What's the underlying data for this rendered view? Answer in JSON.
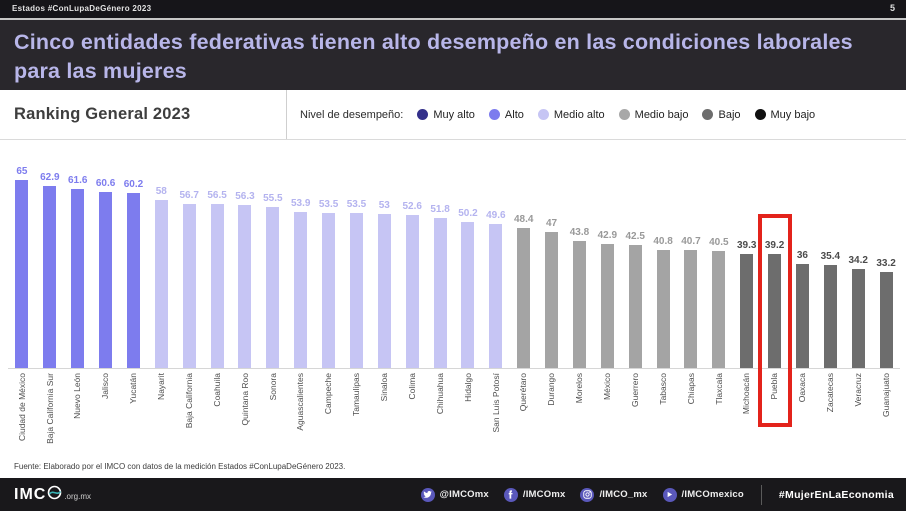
{
  "meta_bar": {
    "left_text": "Estados #ConLupaDeGénero 2023",
    "page_number": "5"
  },
  "title": "Cinco entidades federativas tienen alto desempeño en las condiciones laborales para las mujeres",
  "ranking_header": {
    "title": "Ranking General 2023",
    "legend_label": "Nivel de desempeño:",
    "legend": [
      {
        "label": "Muy alto"
      },
      {
        "label": "Alto"
      },
      {
        "label": "Medio alto"
      },
      {
        "label": "Medio bajo"
      },
      {
        "label": "Bajo"
      },
      {
        "label": "Muy bajo"
      }
    ]
  },
  "chart_data": {
    "type": "bar",
    "title": "Ranking General 2023",
    "xlabel": "",
    "ylabel": "",
    "ylim": [
      0,
      70
    ],
    "grid": false,
    "legend_position": "top",
    "categories": [
      "Ciudad de México",
      "Baja California Sur",
      "Nuevo León",
      "Jalisco",
      "Yucatán",
      "Nayarit",
      "Baja California",
      "Coahuila",
      "Quintana Roo",
      "Sonora",
      "Aguascalientes",
      "Campeche",
      "Tamaulipas",
      "Sinaloa",
      "Colima",
      "Chihuahua",
      "Hidalgo",
      "San Luis Potosí",
      "Querétaro",
      "Durango",
      "Morelos",
      "México",
      "Guerrero",
      "Tabasco",
      "Chiapas",
      "Tlaxcala",
      "Michoacán",
      "Puebla",
      "Oaxaca",
      "Zacatecas",
      "Veracruz",
      "Guanajuato"
    ],
    "values": [
      65,
      62.9,
      61.6,
      60.6,
      60.2,
      58,
      56.7,
      56.5,
      56.3,
      55.5,
      53.9,
      53.5,
      53.5,
      53,
      52.6,
      51.8,
      50.2,
      49.6,
      48.4,
      47,
      43.8,
      42.9,
      42.5,
      40.8,
      40.7,
      40.5,
      39.3,
      39.2,
      36,
      35.4,
      34.2,
      33.2
    ],
    "value_labels": [
      "65",
      "62.9",
      "61.6",
      "60.6",
      "60.2",
      "58",
      "56.7",
      "56.5",
      "56.3",
      "55.5",
      "53.9",
      "53.5",
      "53.5",
      "53",
      "52.6",
      "51.8",
      "50.2",
      "49.6",
      "48.4",
      "47",
      "43.8",
      "42.9",
      "42.5",
      "40.8",
      "40.7",
      "40.5",
      "39.3",
      "39.2",
      "36",
      "35.4",
      "34.2",
      "33.2"
    ],
    "levels": [
      "Alto",
      "Alto",
      "Alto",
      "Alto",
      "Alto",
      "Medio alto",
      "Medio alto",
      "Medio alto",
      "Medio alto",
      "Medio alto",
      "Medio alto",
      "Medio alto",
      "Medio alto",
      "Medio alto",
      "Medio alto",
      "Medio alto",
      "Medio alto",
      "Medio alto",
      "Medio bajo",
      "Medio bajo",
      "Medio bajo",
      "Medio bajo",
      "Medio bajo",
      "Medio bajo",
      "Medio bajo",
      "Medio bajo",
      "Bajo",
      "Bajo",
      "Bajo",
      "Bajo",
      "Bajo",
      "Bajo"
    ],
    "level_colors": {
      "Muy alto": {
        "dot": "#33308a",
        "bar": "#33308a",
        "text": "#33308a"
      },
      "Alto": {
        "dot": "#7d7cee",
        "bar": "#7d7cee",
        "text": "#7d7cee"
      },
      "Medio alto": {
        "dot": "#c6c5f4",
        "bar": "#c6c5f4",
        "text": "#b4b3ef"
      },
      "Medio bajo": {
        "dot": "#a8a8a8",
        "bar": "#a4a4a4",
        "text": "#999999"
      },
      "Bajo": {
        "dot": "#6d6d6d",
        "bar": "#6d6d6d",
        "text": "#4b4b4b"
      },
      "Muy bajo": {
        "dot": "#101010",
        "bar": "#101010",
        "text": "#101010"
      }
    },
    "highlight": {
      "category": "Puebla",
      "color": "#e3231b"
    }
  },
  "source": "Fuente: Elaborado por el IMCO  con datos de la medición Estados #ConLupaDeGénero 2023.",
  "footer": {
    "logo_text": "IMC",
    "logo_suffix": ".org.mx",
    "social": [
      {
        "icon": "twitter-icon",
        "handle": "@IMCOmx"
      },
      {
        "icon": "facebook-icon",
        "handle": "/IMCOmx"
      },
      {
        "icon": "instagram-icon",
        "handle": "/IMCO_mx"
      },
      {
        "icon": "youtube-icon",
        "handle": "/IMCOmexico"
      }
    ],
    "hashtag": "#MujerEnLaEconomia",
    "colors": {
      "accent_purple": "#5a58bb",
      "logo_teal": "#39b3b5"
    }
  }
}
